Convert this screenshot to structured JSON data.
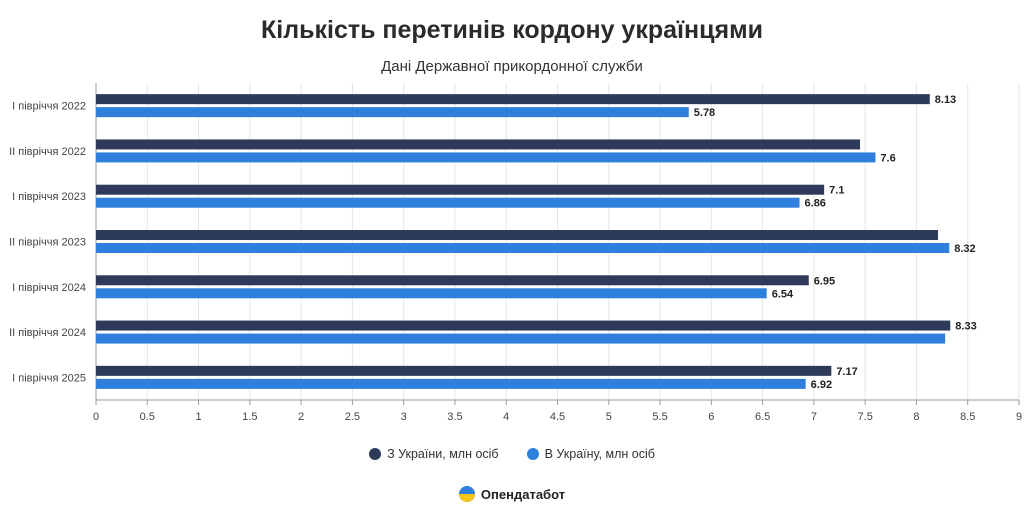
{
  "title": "Кількість перетинів кордону українцями",
  "subtitle": "Дані Державної прикордонної служби",
  "brand": {
    "name": "Опендатабот",
    "logo_icon": "opendatabot-logo-icon"
  },
  "colors": {
    "from": "#2e3a5a",
    "to": "#2f7fdc",
    "grid": "#e6e6e6",
    "axis": "#999999"
  },
  "chart_data": {
    "type": "bar",
    "orientation": "horizontal",
    "categories": [
      "I півріччя 2022",
      "II півріччя 2022",
      "I півріччя 2023",
      "II півріччя 2023",
      "I півріччя 2024",
      "II півріччя 2024",
      "I півріччя 2025"
    ],
    "series": [
      {
        "name": "З України, млн осіб",
        "color": "#2e3a5a",
        "values": [
          8.13,
          7.45,
          7.1,
          8.21,
          6.95,
          8.33,
          7.17
        ],
        "labels": [
          "8.13",
          "",
          "7.1",
          "",
          "6.95",
          "8.33",
          "7.17"
        ]
      },
      {
        "name": "В Україну, млн осіб",
        "color": "#2f7fdc",
        "values": [
          5.78,
          7.6,
          6.86,
          8.32,
          6.54,
          8.28,
          6.92
        ],
        "labels": [
          "5.78",
          "7.6",
          "6.86",
          "8.32",
          "6.54",
          "",
          "6.92"
        ]
      }
    ],
    "xlim": [
      0,
      9
    ],
    "ticks": [
      "0",
      "0.5",
      "1",
      "1.5",
      "2",
      "2.5",
      "3",
      "3.5",
      "4",
      "4.5",
      "5",
      "5.5",
      "6",
      "6.5",
      "7",
      "7.5",
      "8",
      "8.5",
      "9"
    ],
    "grid": true,
    "legend": "bottom"
  }
}
